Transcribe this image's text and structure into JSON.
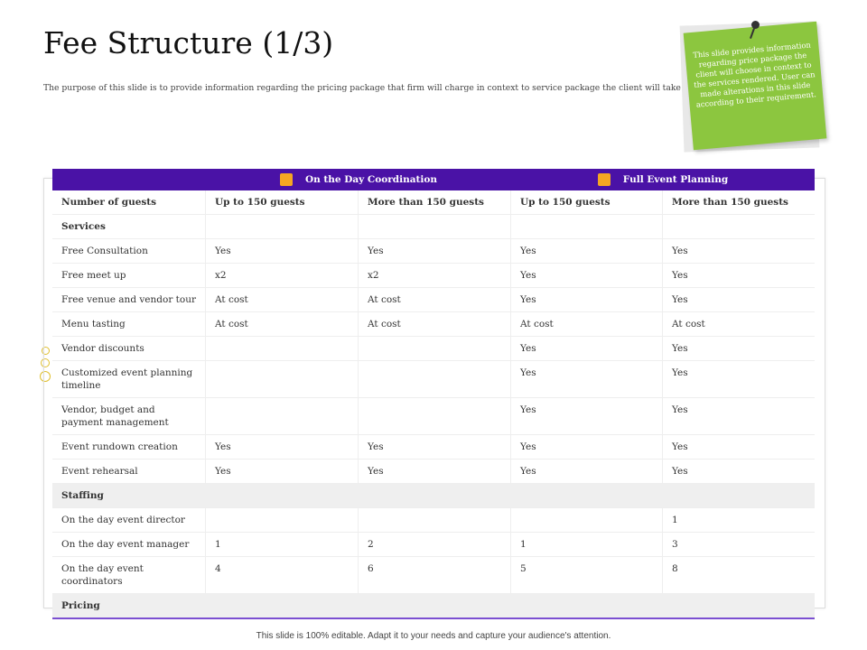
{
  "title": "Fee Structure (1/3)",
  "subtitle": "The purpose of this slide is to provide information regarding the pricing package that firm will charge in context to service package the client will take",
  "note": "This slide provides information regarding price package the client will choose in context to the services rendered. User can made alterations in this slide according to their requirement.",
  "groups": [
    {
      "label": "On the Day Coordination",
      "icon": "hierarchy-icon"
    },
    {
      "label": "Full Event Planning",
      "icon": "person-calendar-icon"
    }
  ],
  "columns": [
    "Number of guests",
    "Up to 150 guests",
    "More than 150 guests",
    "Up to 150 guests",
    "More than 150 guests"
  ],
  "rows": [
    {
      "type": "section",
      "label": "Services",
      "gray": false
    },
    {
      "cells": [
        "Free Consultation",
        "Yes",
        "Yes",
        "Yes",
        "Yes"
      ]
    },
    {
      "cells": [
        "Free meet up",
        "x2",
        "x2",
        "Yes",
        "Yes"
      ]
    },
    {
      "cells": [
        "Free venue and vendor tour",
        "At cost",
        "At cost",
        "Yes",
        "Yes"
      ]
    },
    {
      "cells": [
        "Menu tasting",
        "At cost",
        "At cost",
        "At cost",
        "At cost"
      ]
    },
    {
      "cells": [
        "Vendor discounts",
        "",
        "",
        "Yes",
        "Yes"
      ]
    },
    {
      "cells": [
        "Customized event planning timeline",
        "",
        "",
        "Yes",
        "Yes"
      ]
    },
    {
      "cells": [
        "Vendor, budget and payment management",
        "",
        "",
        "Yes",
        "Yes"
      ]
    },
    {
      "cells": [
        "Event rundown creation",
        "Yes",
        "Yes",
        "Yes",
        "Yes"
      ]
    },
    {
      "cells": [
        "Event rehearsal",
        "Yes",
        "Yes",
        "Yes",
        "Yes"
      ]
    },
    {
      "type": "section",
      "label": "Staffing",
      "gray": true
    },
    {
      "cells": [
        "On the day event director",
        "",
        "",
        "",
        "1"
      ]
    },
    {
      "cells": [
        "On the day event manager",
        "1",
        "2",
        "1",
        "3"
      ]
    },
    {
      "cells": [
        "On the day event coordinators",
        "4",
        "6",
        "5",
        "8"
      ]
    },
    {
      "type": "section",
      "label": "Pricing",
      "gray": true,
      "pricing": true
    }
  ],
  "footer": "This slide is 100% editable. Adapt it to your needs and capture your audience's attention.",
  "colors": {
    "header": "#4a12a6",
    "note": "#8cc63f",
    "accent": "#7b4fd1"
  }
}
